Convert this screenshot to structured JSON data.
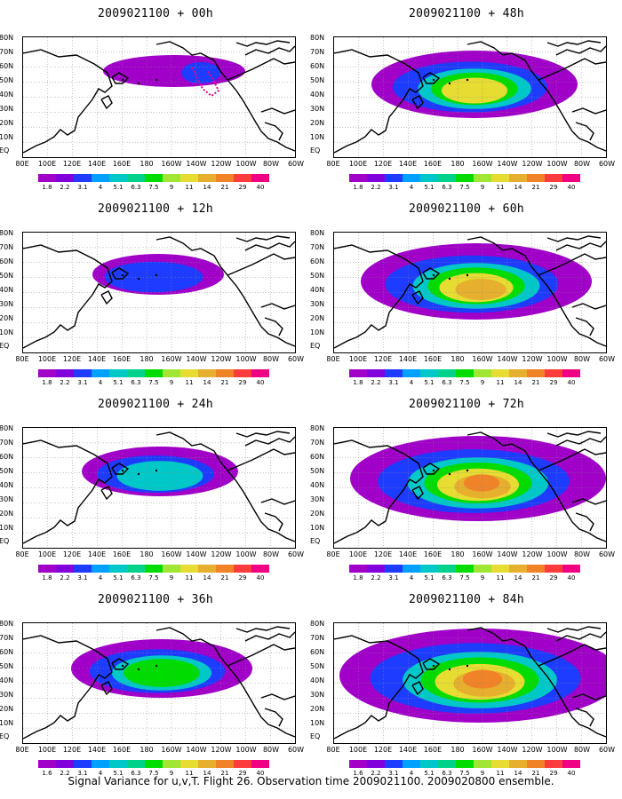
{
  "panels": [
    {
      "title": "2009021100 + 00h",
      "level": 0
    },
    {
      "title": "2009021100 + 48h",
      "level": 4
    },
    {
      "title": "2009021100 + 12h",
      "level": 1
    },
    {
      "title": "2009021100 + 60h",
      "level": 5
    },
    {
      "title": "2009021100 + 24h",
      "level": 2
    },
    {
      "title": "2009021100 + 72h",
      "level": 6
    },
    {
      "title": "2009021100 + 36h",
      "level": 3
    },
    {
      "title": "2009021100 + 84h",
      "level": 7
    }
  ],
  "lat_labels": [
    "80N",
    "70N",
    "60N",
    "50N",
    "40N",
    "30N",
    "20N",
    "10N",
    "EQ"
  ],
  "lon_labels": [
    "80E",
    "100E",
    "120E",
    "140E",
    "160E",
    "180",
    "160W",
    "140W",
    "120W",
    "100W",
    "80W",
    "60W"
  ],
  "colorbar": {
    "labels": [
      "1.8",
      "2.2",
      "3.1",
      "4",
      "5.1",
      "6.3",
      "7.5",
      "9",
      "11",
      "14",
      "21",
      "29",
      "40"
    ],
    "labels_alt": [
      "1.6",
      "2.2",
      "3.1",
      "4",
      "5.1",
      "6.3",
      "7.5",
      "9",
      "11",
      "14",
      "21",
      "29",
      "40"
    ],
    "colors": [
      "#a000c8",
      "#8200dc",
      "#1e3cff",
      "#00a0ff",
      "#00c8c8",
      "#00d28c",
      "#00dc00",
      "#a0e632",
      "#e6dc32",
      "#e6af2d",
      "#f08228",
      "#fa3c3c",
      "#f00082"
    ]
  },
  "footer": "Signal Variance for u,v,T. Flight 26. Observation time 2009021100. 2009020800 ensemble."
}
